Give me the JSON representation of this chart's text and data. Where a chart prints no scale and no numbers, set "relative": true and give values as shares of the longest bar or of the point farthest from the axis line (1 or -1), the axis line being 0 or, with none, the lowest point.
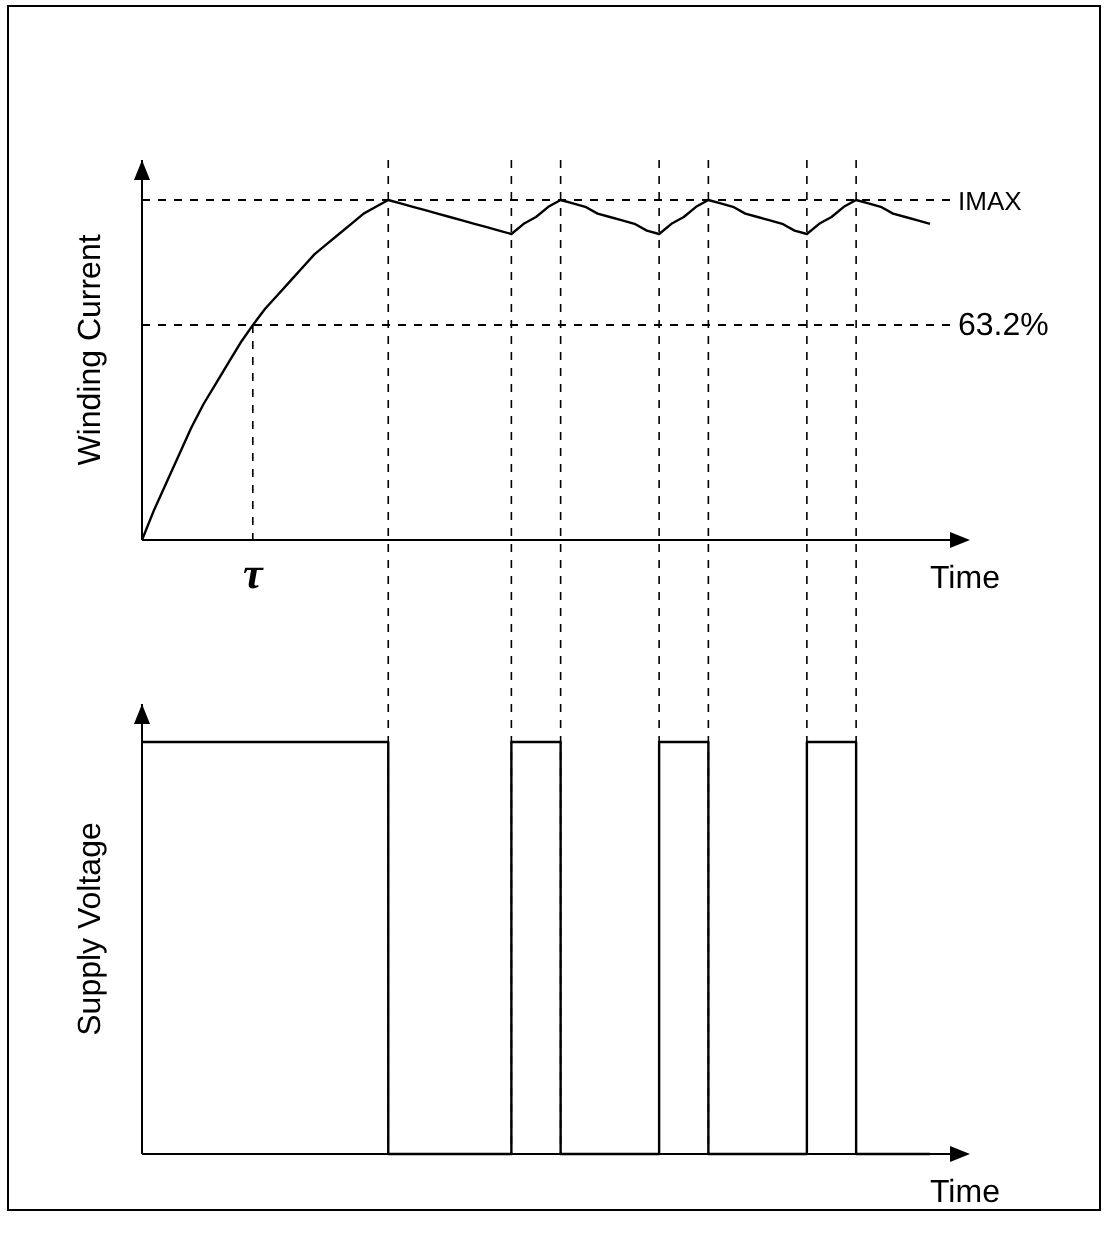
{
  "chart_data": [
    {
      "type": "line",
      "relative": true,
      "grid": "x",
      "ylabel": "Winding Current",
      "xlabel": "Time",
      "annotations": [
        "τ"
      ],
      "categories": [
        null,
        null,
        null,
        null,
        null,
        null,
        null,
        null,
        null,
        null,
        null,
        null,
        null,
        null,
        null,
        null,
        null,
        null,
        null,
        null,
        null,
        null,
        null,
        null,
        null,
        null,
        null,
        null,
        null,
        null,
        null,
        null,
        null,
        null,
        null,
        null,
        null,
        null,
        null,
        null,
        null,
        null,
        null,
        null,
        null,
        null,
        null,
        null,
        null,
        null,
        null,
        null,
        null,
        null,
        null,
        null,
        null,
        null,
        null,
        null,
        null,
        null,
        null,
        null,
        null
      ],
      "series": [
        {
          "color": "#000000",
          "values": [
            0,
            0.09,
            0.17,
            0.25,
            0.33,
            0.4,
            0.46,
            0.52,
            0.58,
            0.632,
            0.68,
            0.72,
            0.76,
            0.8,
            0.84,
            0.87,
            0.9,
            0.93,
            0.96,
            0.98,
            1,
            0.99,
            0.98,
            0.97,
            0.96,
            0.95,
            0.94,
            0.93,
            0.92,
            0.91,
            0.9,
            0.93,
            0.95,
            0.98,
            1,
            0.99,
            0.98,
            0.96,
            0.95,
            0.94,
            0.93,
            0.91,
            0.9,
            0.93,
            0.95,
            0.98,
            1,
            0.99,
            0.98,
            0.96,
            0.95,
            0.94,
            0.93,
            0.91,
            0.9,
            0.93,
            0.95,
            0.98,
            1,
            0.99,
            0.98,
            0.96,
            0.95,
            0.94,
            0.93
          ]
        }
      ],
      "ref_lines": [
        {
          "axis": "y",
          "value": 1,
          "label": "IMAX",
          "line_style": "dashed"
        },
        {
          "axis": "y",
          "value": 0.632,
          "label": "63.2%",
          "line_style": "dashed"
        }
      ]
    },
    {
      "type": "step",
      "relative": true,
      "grid": "x",
      "ylabel": "Supply Voltage",
      "xlabel": "Time",
      "categories": [
        null,
        null,
        null,
        null,
        null,
        null,
        null,
        null,
        null,
        null,
        null,
        null,
        null,
        null,
        null,
        null,
        null,
        null,
        null,
        null,
        null,
        null,
        null,
        null,
        null,
        null,
        null,
        null,
        null,
        null,
        null,
        null,
        null,
        null,
        null,
        null,
        null,
        null,
        null,
        null,
        null,
        null,
        null,
        null,
        null,
        null,
        null,
        null,
        null,
        null,
        null,
        null,
        null,
        null,
        null,
        null,
        null,
        null,
        null,
        null,
        null,
        null,
        null,
        null,
        null
      ],
      "series": [
        {
          "color": "#000000",
          "values": [
            1,
            1,
            1,
            1,
            1,
            1,
            1,
            1,
            1,
            1,
            1,
            1,
            1,
            1,
            1,
            1,
            1,
            1,
            1,
            1,
            0,
            0,
            0,
            0,
            0,
            0,
            0,
            0,
            0,
            0,
            1,
            1,
            1,
            1,
            0,
            0,
            0,
            0,
            0,
            0,
            0,
            0,
            1,
            1,
            1,
            1,
            0,
            0,
            0,
            0,
            0,
            0,
            0,
            0,
            1,
            1,
            1,
            1,
            0,
            0,
            0,
            0,
            0,
            0,
            0
          ]
        }
      ]
    }
  ]
}
